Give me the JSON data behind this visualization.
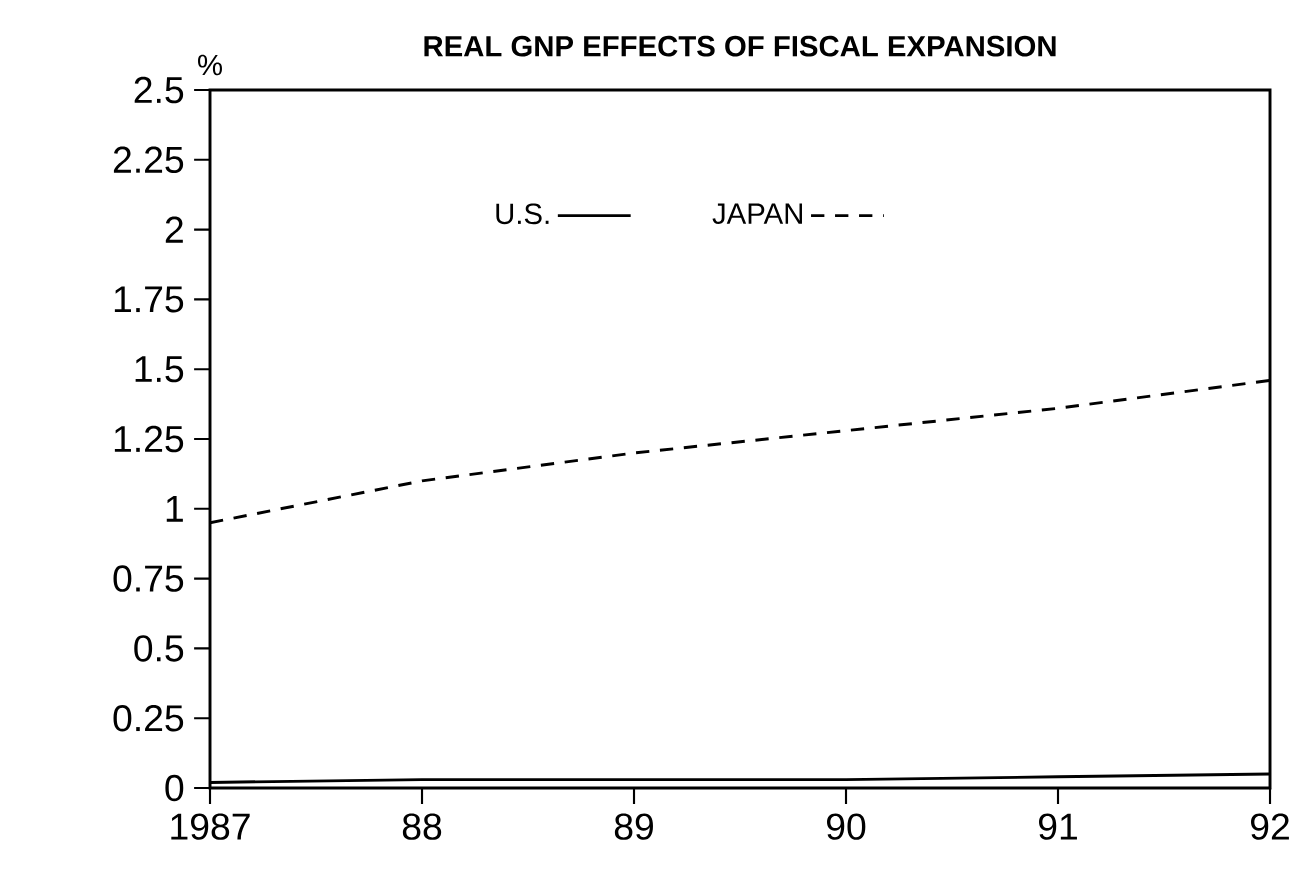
{
  "chart_data": {
    "type": "line",
    "title": "REAL GNP EFFECTS OF FISCAL EXPANSION",
    "ylabel": "%",
    "x": [
      1987,
      1988,
      1989,
      1990,
      1991,
      1992
    ],
    "xlim": [
      1987,
      1992
    ],
    "ylim": [
      0,
      2.5
    ],
    "xticks": [
      {
        "value": 1987,
        "label": "1987"
      },
      {
        "value": 1988,
        "label": "88"
      },
      {
        "value": 1989,
        "label": "89"
      },
      {
        "value": 1990,
        "label": "90"
      },
      {
        "value": 1991,
        "label": "91"
      },
      {
        "value": 1992,
        "label": "92"
      }
    ],
    "yticks": [
      0,
      0.25,
      0.5,
      0.75,
      1,
      1.25,
      1.5,
      1.75,
      2,
      2.25,
      2.5
    ],
    "legend": "top",
    "series": [
      {
        "name": "U.S.",
        "color": "#000000",
        "line_style": "solid",
        "values": [
          0.02,
          0.03,
          0.03,
          0.03,
          0.04,
          0.05
        ]
      },
      {
        "name": "JAPAN",
        "color": "#000000",
        "line_style": "dashed",
        "values": [
          0.95,
          1.1,
          1.2,
          1.28,
          1.36,
          1.46
        ]
      }
    ]
  }
}
